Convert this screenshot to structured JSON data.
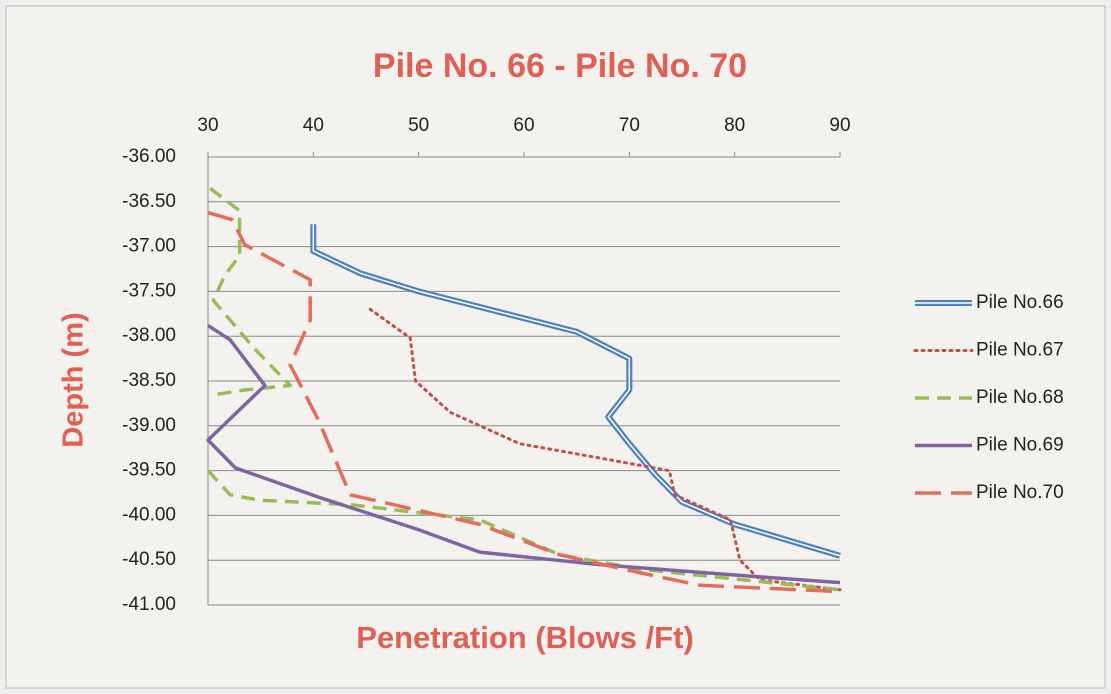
{
  "chart_data": {
    "type": "line",
    "title": "Pile No. 66 - Pile No. 70",
    "x_label": "Penetration (Blows /Ft)",
    "y_label": "Depth (m)",
    "xlim": [
      30,
      90
    ],
    "xticks": [
      30,
      40,
      50,
      60,
      70,
      80,
      90
    ],
    "ylim": [
      -41,
      -36
    ],
    "yticks": [
      {
        "value": -36,
        "label": "-36.00"
      },
      {
        "value": -36.5,
        "label": "-36.50"
      },
      {
        "value": -37,
        "label": "-37.00"
      },
      {
        "value": -37.5,
        "label": "-37.50"
      },
      {
        "value": -38,
        "label": "-38.00"
      },
      {
        "value": -38.5,
        "label": "-38.50"
      },
      {
        "value": -39,
        "label": "-39.00"
      },
      {
        "value": -39.5,
        "label": "-39.50"
      },
      {
        "value": -40,
        "label": "-40.00"
      },
      {
        "value": -40.5,
        "label": "-40.50"
      },
      {
        "value": -41,
        "label": "-41.00"
      }
    ],
    "grid": true,
    "legend": "right",
    "series": [
      {
        "name": "Pile No.66",
        "color": "#4f81bd",
        "dash": "solid",
        "x": [
          40,
          40,
          44.5,
          50,
          60,
          65,
          70,
          70,
          68,
          70,
          72.5,
          75,
          80,
          90
        ],
        "values": [
          -36.75,
          -37.05,
          -37.3,
          -37.5,
          -37.8,
          -37.95,
          -38.25,
          -38.6,
          -38.9,
          -39.2,
          -39.55,
          -39.85,
          -40.1,
          -40.45
        ]
      },
      {
        "name": "Pile No.67",
        "color": "#c0504d",
        "dash": "dot",
        "x": [
          45.4,
          49.2,
          49.7,
          53,
          59.6,
          69.1,
          73.8,
          74.3,
          79.6,
          80.5,
          82.4,
          90
        ],
        "values": [
          -37.7,
          -38.02,
          -38.5,
          -38.85,
          -39.2,
          -39.4,
          -39.5,
          -39.77,
          -40.05,
          -40.5,
          -40.72,
          -40.83
        ]
      },
      {
        "name": "Pile No.68",
        "color": "#9bbb59",
        "dash": "dash",
        "x": [
          30.2,
          33,
          33,
          31.6,
          30.5,
          34.5,
          37.8,
          33.5,
          30.2,
          null,
          30,
          32.1,
          34.9,
          43.5,
          55.8,
          63.4,
          71,
          90
        ],
        "values": [
          -36.35,
          -36.6,
          -37.1,
          -37.32,
          -37.6,
          -38.15,
          -38.55,
          -38.6,
          -38.66,
          null,
          -39.5,
          -39.77,
          -39.83,
          -39.88,
          -40.05,
          -40.44,
          -40.6,
          -40.83
        ]
      },
      {
        "name": "Pile No.69",
        "color": "#8064a2",
        "dash": "solid",
        "x": [
          30,
          32.1,
          35.4,
          30,
          32.6,
          40.6,
          50,
          55.8,
          67.2,
          80.5,
          90
        ],
        "values": [
          -37.88,
          -38.04,
          -38.55,
          -39.16,
          -39.47,
          -39.8,
          -40.16,
          -40.41,
          -40.55,
          -40.67,
          -40.75
        ]
      },
      {
        "name": "Pile No.70",
        "color": "#e36c5a",
        "dash": "longdash",
        "x": [
          30,
          32.3,
          33.5,
          39.7,
          39.7,
          37.8,
          40.5,
          43.5,
          55.8,
          63.4,
          71,
          76.7,
          90
        ],
        "values": [
          -36.62,
          -36.7,
          -36.98,
          -37.37,
          -37.82,
          -38.32,
          -38.94,
          -39.77,
          -40.1,
          -40.44,
          -40.64,
          -40.78,
          -40.85
        ]
      }
    ]
  }
}
